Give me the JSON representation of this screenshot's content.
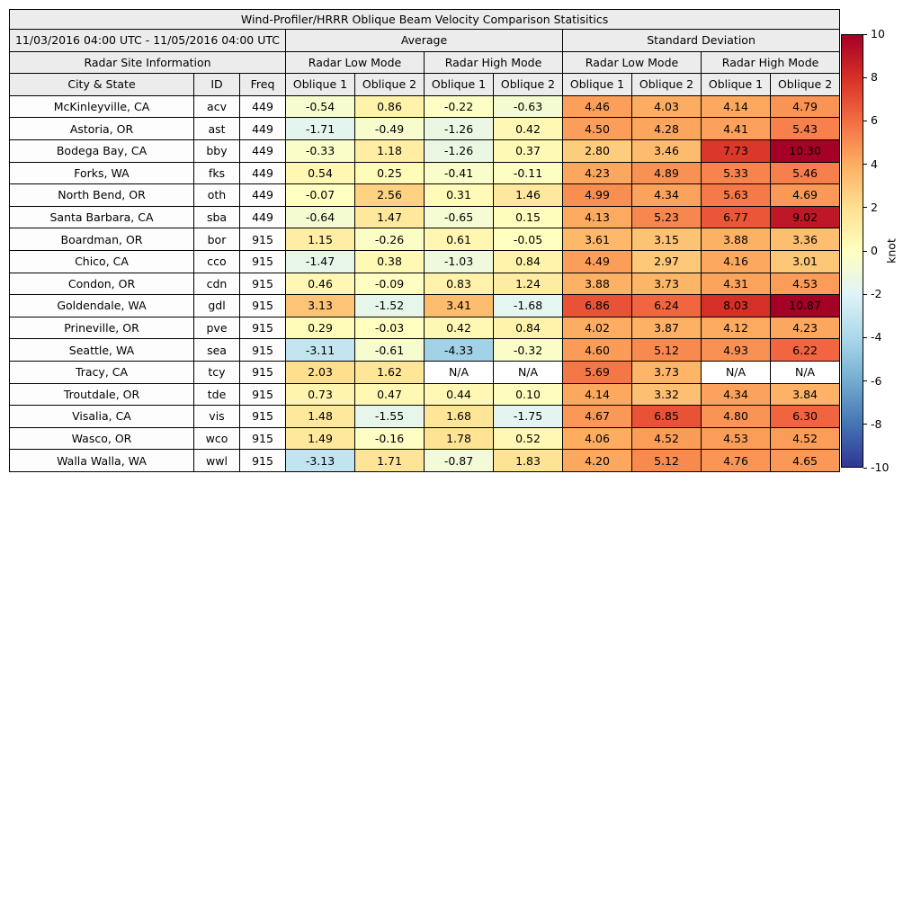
{
  "styles": {
    "header_bg": "#ececec",
    "border_color": "#000000",
    "na_cell_bg": "#ffffff"
  },
  "chart_data": {
    "type": "table",
    "title": "Wind-Profiler/HRRR Oblique Beam Velocity Comparison Statisitics",
    "date_range": "11/03/2016 04:00 UTC - 11/05/2016 04:00 UTC",
    "groups": {
      "average": "Average",
      "std": "Standard Deviation"
    },
    "subgroups": {
      "site_info": "Radar Site Information",
      "low_mode": "Radar Low Mode",
      "high_mode": "Radar High Mode"
    },
    "columns": {
      "city": "City & State",
      "id": "ID",
      "freq": "Freq",
      "oblique1": "Oblique 1",
      "oblique2": "Oblique 2"
    },
    "rows": [
      {
        "city": "McKinleyville, CA",
        "id": "acv",
        "freq": "449",
        "values": [
          "-0.54",
          "0.86",
          "-0.22",
          "-0.63",
          "4.46",
          "4.03",
          "4.14",
          "4.79"
        ]
      },
      {
        "city": "Astoria, OR",
        "id": "ast",
        "freq": "449",
        "values": [
          "-1.71",
          "-0.49",
          "-1.26",
          "0.42",
          "4.50",
          "4.28",
          "4.41",
          "5.43"
        ]
      },
      {
        "city": "Bodega Bay, CA",
        "id": "bby",
        "freq": "449",
        "values": [
          "-0.33",
          "1.18",
          "-1.26",
          "0.37",
          "2.80",
          "3.46",
          "7.73",
          "10.30"
        ]
      },
      {
        "city": "Forks, WA",
        "id": "fks",
        "freq": "449",
        "values": [
          "0.54",
          "0.25",
          "-0.41",
          "-0.11",
          "4.23",
          "4.89",
          "5.33",
          "5.46"
        ]
      },
      {
        "city": "North Bend, OR",
        "id": "oth",
        "freq": "449",
        "values": [
          "-0.07",
          "2.56",
          "0.31",
          "1.46",
          "4.99",
          "4.34",
          "5.63",
          "4.69"
        ]
      },
      {
        "city": "Santa Barbara, CA",
        "id": "sba",
        "freq": "449",
        "values": [
          "-0.64",
          "1.47",
          "-0.65",
          "0.15",
          "4.13",
          "5.23",
          "6.77",
          "9.02"
        ]
      },
      {
        "city": "Boardman, OR",
        "id": "bor",
        "freq": "915",
        "values": [
          "1.15",
          "-0.26",
          "0.61",
          "-0.05",
          "3.61",
          "3.15",
          "3.88",
          "3.36"
        ]
      },
      {
        "city": "Chico, CA",
        "id": "cco",
        "freq": "915",
        "values": [
          "-1.47",
          "0.38",
          "-1.03",
          "0.84",
          "4.49",
          "2.97",
          "4.16",
          "3.01"
        ]
      },
      {
        "city": "Condon, OR",
        "id": "cdn",
        "freq": "915",
        "values": [
          "0.46",
          "-0.09",
          "0.83",
          "1.24",
          "3.88",
          "3.73",
          "4.31",
          "4.53"
        ]
      },
      {
        "city": "Goldendale, WA",
        "id": "gdl",
        "freq": "915",
        "values": [
          "3.13",
          "-1.52",
          "3.41",
          "-1.68",
          "6.86",
          "6.24",
          "8.03",
          "10.87"
        ]
      },
      {
        "city": "Prineville, OR",
        "id": "pve",
        "freq": "915",
        "values": [
          "0.29",
          "-0.03",
          "0.42",
          "0.84",
          "4.02",
          "3.87",
          "4.12",
          "4.23"
        ]
      },
      {
        "city": "Seattle, WA",
        "id": "sea",
        "freq": "915",
        "values": [
          "-3.11",
          "-0.61",
          "-4.33",
          "-0.32",
          "4.60",
          "5.12",
          "4.93",
          "6.22"
        ]
      },
      {
        "city": "Tracy, CA",
        "id": "tcy",
        "freq": "915",
        "values": [
          "2.03",
          "1.62",
          "N/A",
          "N/A",
          "5.69",
          "3.73",
          "N/A",
          "N/A"
        ]
      },
      {
        "city": "Troutdale, OR",
        "id": "tde",
        "freq": "915",
        "values": [
          "0.73",
          "0.47",
          "0.44",
          "0.10",
          "4.14",
          "3.32",
          "4.34",
          "3.84"
        ]
      },
      {
        "city": "Visalia, CA",
        "id": "vis",
        "freq": "915",
        "values": [
          "1.48",
          "-1.55",
          "1.68",
          "-1.75",
          "4.67",
          "6.85",
          "4.80",
          "6.30"
        ]
      },
      {
        "city": "Wasco, OR",
        "id": "wco",
        "freq": "915",
        "values": [
          "1.49",
          "-0.16",
          "1.78",
          "0.52",
          "4.06",
          "4.52",
          "4.53",
          "4.52"
        ]
      },
      {
        "city": "Walla Walla, WA",
        "id": "wwl",
        "freq": "915",
        "values": [
          "-3.13",
          "1.71",
          "-0.87",
          "1.83",
          "4.20",
          "5.12",
          "4.76",
          "4.65"
        ]
      }
    ],
    "colorbar": {
      "label": "knot",
      "min": -10,
      "max": 10,
      "ticks": [
        10,
        8,
        6,
        4,
        2,
        0,
        -2,
        -4,
        -6,
        -8,
        -10
      ],
      "colormap": "RdYlBu_r",
      "colors": [
        "#313695",
        "#4575b4",
        "#74add1",
        "#abd9e9",
        "#e0f3f8",
        "#ffffbf",
        "#fee090",
        "#fdae61",
        "#f46d43",
        "#d73027",
        "#a50026"
      ]
    }
  }
}
